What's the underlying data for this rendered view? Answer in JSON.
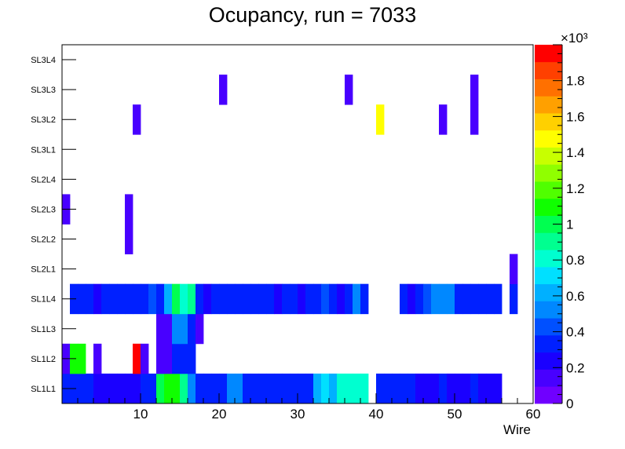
{
  "chart_data": {
    "type": "heatmap",
    "title": "Ocupancy, run = 7033",
    "xlabel": "Wire",
    "ylabel": "",
    "xlim": [
      0,
      60
    ],
    "x_ticks": [
      "10",
      "20",
      "30",
      "40",
      "50",
      "60"
    ],
    "y_categories": [
      "SL1L1",
      "SL1L2",
      "SL1L3",
      "SL1L4",
      "SL2L1",
      "SL2L2",
      "SL2L3",
      "SL2L4",
      "SL3L1",
      "SL3L2",
      "SL3L3",
      "SL3L4"
    ],
    "z_range": [
      0,
      2000
    ],
    "z_axis_exponent": "×10³",
    "z_ticks": [
      "0",
      "0.2",
      "0.4",
      "0.6",
      "0.8",
      "1",
      "1.2",
      "1.4",
      "1.6",
      "1.8"
    ],
    "palette": [
      "#7000ff",
      "#4800ff",
      "#1a00ff",
      "#0020ff",
      "#0050ff",
      "#0088ff",
      "#00b0ff",
      "#00e0ff",
      "#00ffd0",
      "#00ff90",
      "#00ff50",
      "#10ff00",
      "#50ff00",
      "#90ff00",
      "#c8ff00",
      "#ffff00",
      "#ffd000",
      "#ffa000",
      "#ff7000",
      "#ff4000",
      "#ff0000"
    ],
    "cells": [
      {
        "layer": "SL1L1",
        "values": [
          340,
          340,
          340,
          340,
          200,
          200,
          200,
          200,
          200,
          200,
          340,
          340,
          1000,
          1100,
          1100,
          900,
          560,
          340,
          340,
          340,
          340,
          500,
          500,
          340,
          340,
          340,
          340,
          340,
          340,
          340,
          340,
          340,
          660,
          700,
          660,
          800,
          800,
          800,
          800,
          0,
          340,
          340,
          340,
          340,
          340,
          220,
          220,
          220,
          340,
          220,
          220,
          220,
          340,
          220,
          220,
          220,
          0,
          0,
          0,
          0
        ]
      },
      {
        "layer": "SL1L2",
        "values": [
          140,
          1100,
          1100,
          0,
          140,
          0,
          0,
          0,
          0,
          1950,
          140,
          0,
          140,
          140,
          340,
          340,
          340,
          0,
          0,
          0,
          0,
          0,
          0,
          0,
          0,
          0,
          0,
          0,
          0,
          0,
          0,
          0,
          0,
          0,
          0,
          0,
          0,
          0,
          0,
          0,
          0,
          0,
          0,
          0,
          0,
          0,
          0,
          0,
          0,
          0,
          0,
          0,
          0,
          0,
          0,
          0,
          0,
          0,
          0,
          0
        ]
      },
      {
        "layer": "SL1L3",
        "values": [
          0,
          0,
          0,
          0,
          0,
          0,
          0,
          0,
          0,
          0,
          0,
          0,
          140,
          140,
          560,
          560,
          340,
          140,
          0,
          0,
          0,
          0,
          0,
          0,
          0,
          0,
          0,
          0,
          0,
          0,
          0,
          0,
          0,
          0,
          0,
          0,
          0,
          0,
          0,
          0,
          0,
          0,
          0,
          0,
          0,
          0,
          0,
          0,
          0,
          0,
          0,
          0,
          0,
          0,
          0,
          0,
          0,
          0,
          0,
          0
        ]
      },
      {
        "layer": "SL1L4",
        "values": [
          0,
          340,
          340,
          340,
          200,
          340,
          340,
          340,
          340,
          340,
          340,
          400,
          340,
          660,
          1000,
          800,
          900,
          340,
          200,
          340,
          340,
          340,
          340,
          340,
          340,
          340,
          340,
          200,
          340,
          340,
          200,
          340,
          340,
          400,
          340,
          200,
          340,
          560,
          340,
          0,
          0,
          0,
          0,
          340,
          200,
          340,
          400,
          500,
          500,
          500,
          340,
          340,
          340,
          340,
          340,
          340,
          0,
          340,
          0,
          0
        ]
      },
      {
        "layer": "SL2L1",
        "values": [
          0,
          0,
          0,
          0,
          0,
          0,
          0,
          0,
          0,
          0,
          0,
          0,
          0,
          0,
          0,
          0,
          0,
          0,
          0,
          0,
          0,
          0,
          0,
          0,
          0,
          0,
          0,
          0,
          0,
          0,
          0,
          0,
          0,
          0,
          0,
          0,
          0,
          0,
          0,
          0,
          0,
          0,
          0,
          0,
          0,
          0,
          0,
          0,
          0,
          0,
          0,
          0,
          0,
          0,
          0,
          0,
          0,
          140,
          0,
          0
        ]
      },
      {
        "layer": "SL2L2",
        "values": [
          0,
          0,
          0,
          0,
          0,
          0,
          0,
          0,
          140,
          0,
          0,
          0,
          0,
          0,
          0,
          0,
          0,
          0,
          0,
          0,
          0,
          0,
          0,
          0,
          0,
          0,
          0,
          0,
          0,
          0,
          0,
          0,
          0,
          0,
          0,
          0,
          0,
          0,
          0,
          0,
          0,
          0,
          0,
          0,
          0,
          0,
          0,
          0,
          0,
          0,
          0,
          0,
          0,
          0,
          0,
          0,
          0,
          0,
          0,
          0
        ]
      },
      {
        "layer": "SL2L3",
        "values": [
          140,
          0,
          0,
          0,
          0,
          0,
          0,
          0,
          140,
          0,
          0,
          0,
          0,
          0,
          0,
          0,
          0,
          0,
          0,
          0,
          0,
          0,
          0,
          0,
          0,
          0,
          0,
          0,
          0,
          0,
          0,
          0,
          0,
          0,
          0,
          0,
          0,
          0,
          0,
          0,
          0,
          0,
          0,
          0,
          0,
          0,
          0,
          0,
          0,
          0,
          0,
          0,
          0,
          0,
          0,
          0,
          0,
          0,
          0,
          0
        ]
      },
      {
        "layer": "SL2L4",
        "values": [
          0,
          0,
          0,
          0,
          0,
          0,
          0,
          0,
          0,
          0,
          0,
          0,
          0,
          0,
          0,
          0,
          0,
          0,
          0,
          0,
          0,
          0,
          0,
          0,
          0,
          0,
          0,
          0,
          0,
          0,
          0,
          0,
          0,
          0,
          0,
          0,
          0,
          0,
          0,
          0,
          0,
          0,
          0,
          0,
          0,
          0,
          0,
          0,
          0,
          0,
          0,
          0,
          0,
          0,
          0,
          0,
          0,
          0,
          0,
          0
        ]
      },
      {
        "layer": "SL3L1",
        "values": [
          0,
          0,
          0,
          0,
          0,
          0,
          0,
          0,
          0,
          0,
          0,
          0,
          0,
          0,
          0,
          0,
          0,
          0,
          0,
          0,
          0,
          0,
          0,
          0,
          0,
          0,
          0,
          0,
          0,
          0,
          0,
          0,
          0,
          0,
          0,
          0,
          0,
          0,
          0,
          0,
          0,
          0,
          0,
          0,
          0,
          0,
          0,
          0,
          0,
          0,
          0,
          0,
          0,
          0,
          0,
          0,
          0,
          0,
          0,
          0
        ]
      },
      {
        "layer": "SL3L2",
        "values": [
          0,
          0,
          0,
          0,
          0,
          0,
          0,
          0,
          0,
          140,
          0,
          0,
          0,
          0,
          0,
          0,
          0,
          0,
          0,
          0,
          0,
          0,
          0,
          0,
          0,
          0,
          0,
          0,
          0,
          0,
          0,
          0,
          0,
          0,
          0,
          0,
          0,
          0,
          0,
          0,
          1500,
          0,
          0,
          0,
          0,
          0,
          0,
          0,
          140,
          0,
          0,
          0,
          140,
          0,
          0,
          0,
          0,
          0,
          0,
          0
        ]
      },
      {
        "layer": "SL3L3",
        "values": [
          0,
          0,
          0,
          0,
          0,
          0,
          0,
          0,
          0,
          0,
          0,
          0,
          0,
          0,
          0,
          0,
          0,
          0,
          0,
          0,
          140,
          0,
          0,
          0,
          0,
          0,
          0,
          0,
          0,
          0,
          0,
          0,
          0,
          0,
          0,
          0,
          140,
          0,
          0,
          0,
          0,
          0,
          0,
          0,
          0,
          0,
          0,
          0,
          0,
          0,
          0,
          0,
          140,
          0,
          0,
          0,
          0,
          0,
          0,
          0
        ]
      },
      {
        "layer": "SL3L4",
        "values": [
          0,
          0,
          0,
          0,
          0,
          0,
          0,
          0,
          0,
          0,
          0,
          0,
          0,
          0,
          0,
          0,
          0,
          0,
          0,
          0,
          0,
          0,
          0,
          0,
          0,
          0,
          0,
          0,
          0,
          0,
          0,
          0,
          0,
          0,
          0,
          0,
          0,
          0,
          0,
          0,
          0,
          0,
          0,
          0,
          0,
          0,
          0,
          0,
          0,
          0,
          0,
          0,
          0,
          0,
          0,
          0,
          0,
          0,
          0,
          0
        ]
      }
    ]
  }
}
